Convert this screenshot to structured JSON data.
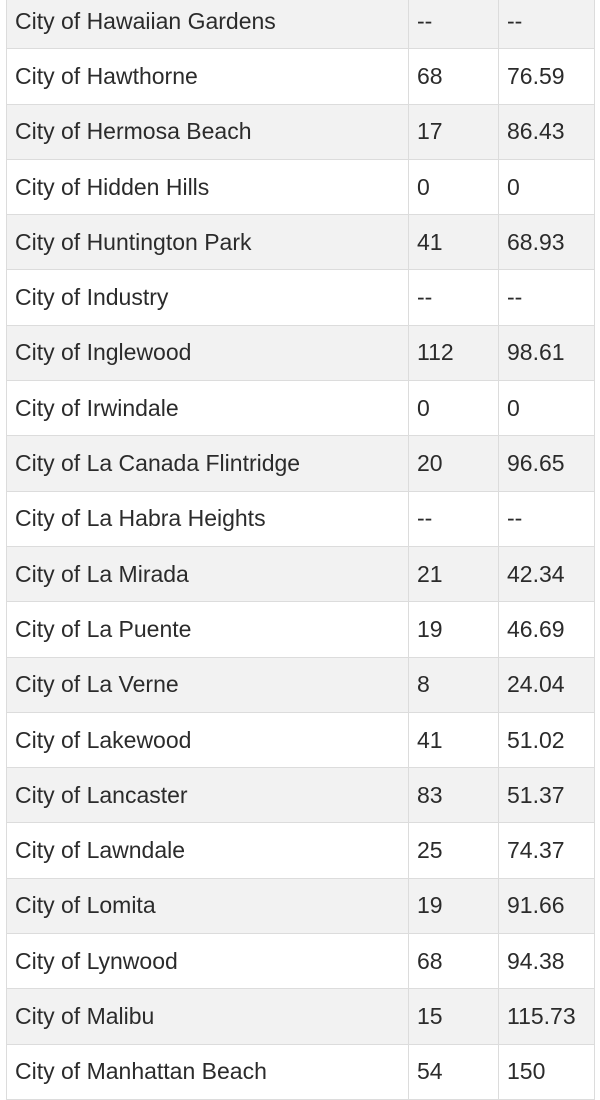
{
  "table": {
    "rows": [
      {
        "name": "City of Hawaiian Gardens",
        "col2": "--",
        "col3": "--"
      },
      {
        "name": "City of Hawthorne",
        "col2": "68",
        "col3": "76.59"
      },
      {
        "name": "City of Hermosa Beach",
        "col2": "17",
        "col3": "86.43"
      },
      {
        "name": "City of Hidden Hills",
        "col2": "0",
        "col3": "0"
      },
      {
        "name": "City of Huntington Park",
        "col2": "41",
        "col3": "68.93"
      },
      {
        "name": "City of Industry",
        "col2": "--",
        "col3": "--"
      },
      {
        "name": "City of Inglewood",
        "col2": "112",
        "col3": "98.61"
      },
      {
        "name": "City of Irwindale",
        "col2": "0",
        "col3": "0"
      },
      {
        "name": "City of La Canada Flintridge",
        "col2": "20",
        "col3": "96.65"
      },
      {
        "name": "City of La Habra Heights",
        "col2": "--",
        "col3": "--"
      },
      {
        "name": "City of La Mirada",
        "col2": "21",
        "col3": "42.34"
      },
      {
        "name": "City of La Puente",
        "col2": "19",
        "col3": "46.69"
      },
      {
        "name": "City of La Verne",
        "col2": "8",
        "col3": "24.04"
      },
      {
        "name": "City of Lakewood",
        "col2": "41",
        "col3": "51.02"
      },
      {
        "name": "City of Lancaster",
        "col2": "83",
        "col3": "51.37"
      },
      {
        "name": "City of Lawndale",
        "col2": "25",
        "col3": "74.37"
      },
      {
        "name": "City of Lomita",
        "col2": "19",
        "col3": "91.66"
      },
      {
        "name": "City of Lynwood",
        "col2": "68",
        "col3": "94.38"
      },
      {
        "name": "City of Malibu",
        "col2": "15",
        "col3": "115.73"
      },
      {
        "name": "City of Manhattan Beach",
        "col2": "54",
        "col3": "150"
      }
    ]
  }
}
